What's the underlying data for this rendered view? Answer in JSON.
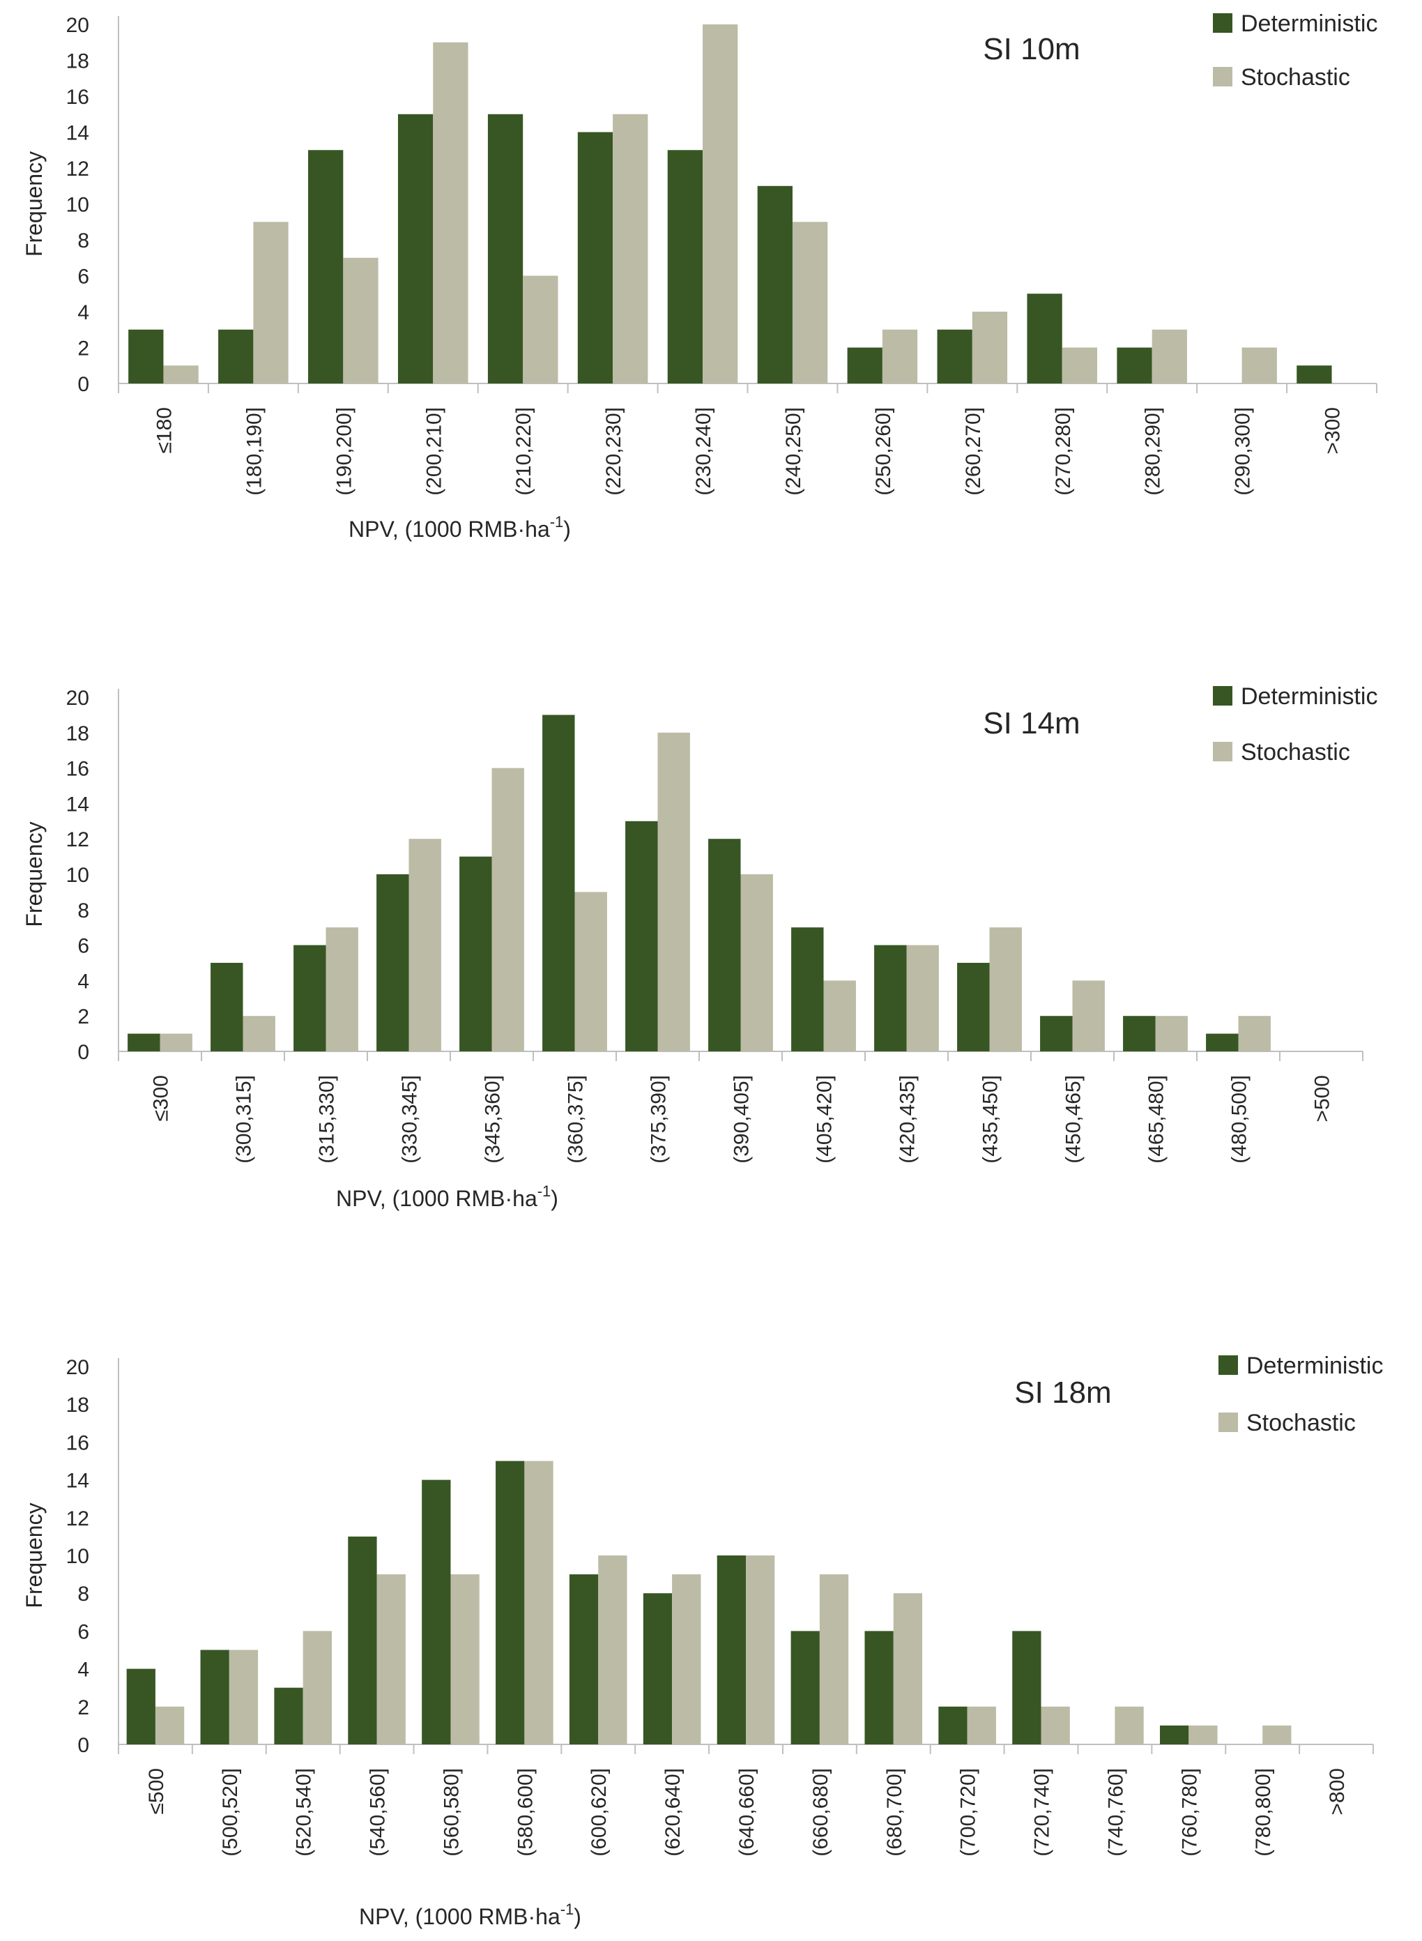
{
  "chart_data": [
    {
      "type": "bar",
      "title": "SI 10m",
      "xlabel": "NPV, (1000 RMB·ha",
      "xlabel_sup": "-1",
      "xlabel_end": ")",
      "ylabel": "Frequency",
      "ylim": [
        0,
        20
      ],
      "yticks": [
        "0",
        "2",
        "4",
        "6",
        "8",
        "10",
        "12",
        "14",
        "16",
        "18",
        "20"
      ],
      "legend_position": "top-right",
      "categories": [
        "≤180",
        "(180,190]",
        "(190,200]",
        "(200,210]",
        "(210,220]",
        "(220,230]",
        "(230,240]",
        "(240,250]",
        "(250,260]",
        "(260,270]",
        "(270,280]",
        "(280,290]",
        "(290,300]",
        ">300"
      ],
      "series": [
        {
          "name": "Deterministic",
          "color": "#375623",
          "values": [
            3,
            3,
            13,
            15,
            15,
            14,
            13,
            11,
            2,
            3,
            5,
            2,
            0,
            1
          ]
        },
        {
          "name": "Stochastic",
          "color": "#BCBBA6",
          "values": [
            1,
            9,
            7,
            19,
            6,
            15,
            20,
            9,
            3,
            4,
            2,
            3,
            2,
            0
          ]
        }
      ]
    },
    {
      "type": "bar",
      "title": "SI 14m",
      "xlabel": "NPV, (1000 RMB·ha",
      "xlabel_sup": "-1",
      "xlabel_end": ")",
      "ylabel": "Frequency",
      "ylim": [
        0,
        20
      ],
      "yticks": [
        "0",
        "2",
        "4",
        "6",
        "8",
        "10",
        "12",
        "14",
        "16",
        "18",
        "20"
      ],
      "legend_position": "top-right",
      "categories": [
        "≤300",
        "(300,315]",
        "(315,330]",
        "(330,345]",
        "(345,360]",
        "(360,375]",
        "(375,390]",
        "(390,405]",
        "(405,420]",
        "(420,435]",
        "(435,450]",
        "(450,465]",
        "(465,480]",
        "(480,500]",
        ">500"
      ],
      "series": [
        {
          "name": "Deterministic",
          "color": "#375623",
          "values": [
            1,
            5,
            6,
            10,
            11,
            19,
            13,
            12,
            7,
            6,
            5,
            2,
            2,
            1,
            0
          ]
        },
        {
          "name": "Stochastic",
          "color": "#BCBBA6",
          "values": [
            1,
            2,
            7,
            12,
            16,
            9,
            18,
            10,
            4,
            6,
            7,
            4,
            2,
            2,
            0
          ]
        }
      ]
    },
    {
      "type": "bar",
      "title": "SI 18m",
      "xlabel": "NPV, (1000 RMB·ha",
      "xlabel_sup": "-1",
      "xlabel_end": ")",
      "ylabel": "Frequency",
      "ylim": [
        0,
        20
      ],
      "yticks": [
        "0",
        "2",
        "4",
        "6",
        "8",
        "10",
        "12",
        "14",
        "16",
        "18",
        "20"
      ],
      "legend_position": "top-right",
      "categories": [
        "≤500",
        "(500,520]",
        "(520,540]",
        "(540,560]",
        "(560,580]",
        "(580,600]",
        "(600,620]",
        "(620,640]",
        "(640,660]",
        "(660,680]",
        "(680,700]",
        "(700,720]",
        "(720,740]",
        "(740,760]",
        "(760,780]",
        "(780,800]",
        ">800"
      ],
      "series": [
        {
          "name": "Deterministic",
          "color": "#375623",
          "values": [
            4,
            5,
            3,
            11,
            14,
            15,
            9,
            8,
            10,
            6,
            6,
            2,
            6,
            0,
            1,
            0,
            0
          ]
        },
        {
          "name": "Stochastic",
          "color": "#BCBBA6",
          "values": [
            2,
            5,
            6,
            9,
            9,
            15,
            10,
            9,
            10,
            9,
            8,
            2,
            2,
            2,
            1,
            1,
            0
          ]
        }
      ]
    }
  ]
}
